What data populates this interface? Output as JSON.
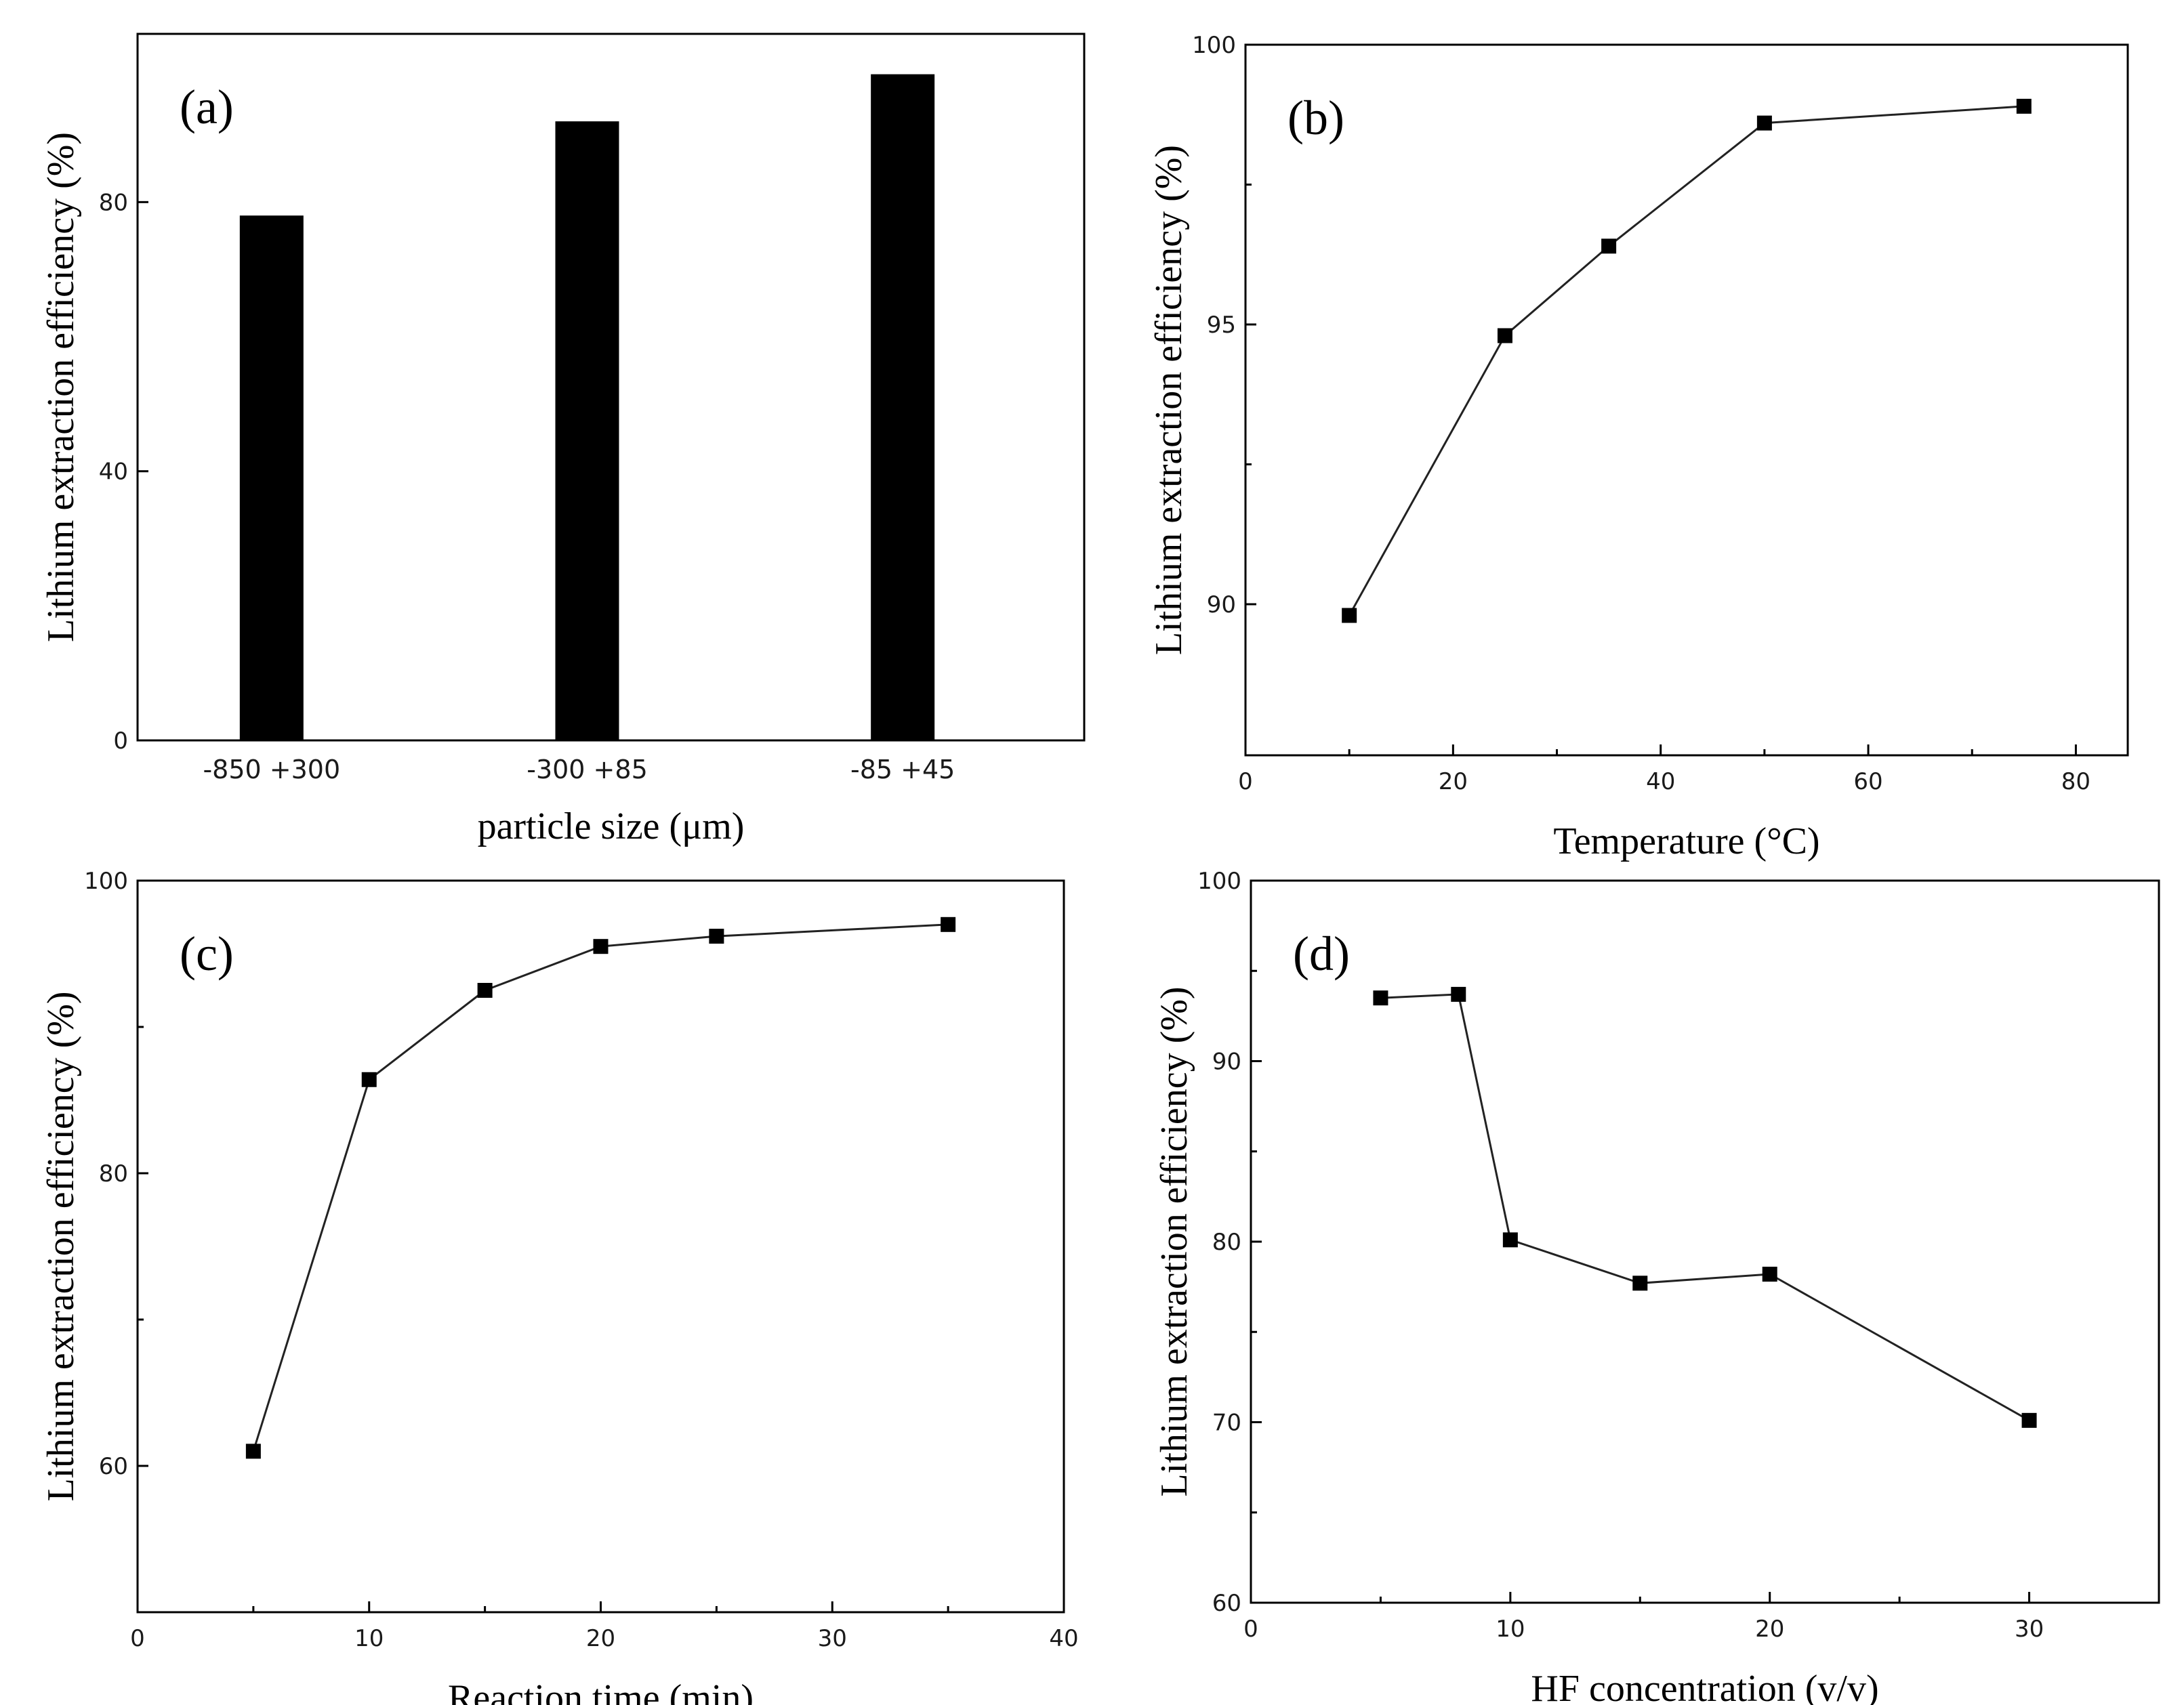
{
  "chart_data": [
    {
      "id": "a",
      "type": "bar",
      "panel_label": "(a)",
      "xlabel": "particle size (μm)",
      "ylabel": "Lithium extraction efficiency (%)",
      "categories": [
        "-850 +300",
        "-300 +85",
        "-85 +45"
      ],
      "values": [
        78,
        92,
        99
      ],
      "ylim": [
        0,
        105
      ],
      "yticks": [
        0,
        40,
        80
      ],
      "grid": false,
      "color": "#000000"
    },
    {
      "id": "b",
      "type": "line",
      "panel_label": "(b)",
      "xlabel": "Temperature (°C)",
      "ylabel": "Lithium extraction efficiency (%)",
      "x": [
        10,
        25,
        35,
        50,
        75
      ],
      "y": [
        89.8,
        94.8,
        96.4,
        98.6,
        98.9
      ],
      "xlim": [
        0,
        85
      ],
      "ylim": [
        87.3,
        100
      ],
      "xticks": [
        0,
        20,
        40,
        60,
        80
      ],
      "yticks": [
        90,
        95,
        100
      ],
      "grid": false,
      "color": "#000000"
    },
    {
      "id": "c",
      "type": "line",
      "panel_label": "(c)",
      "xlabel": "Reaction time (min)",
      "ylabel": "Lithium extraction efficiency (%)",
      "x": [
        5,
        10,
        15,
        20,
        25,
        35
      ],
      "y": [
        61,
        86.4,
        92.5,
        95.5,
        96.2,
        97
      ],
      "xlim": [
        0,
        40
      ],
      "ylim": [
        50,
        100
      ],
      "xticks": [
        0,
        10,
        20,
        30,
        40
      ],
      "yticks": [
        60,
        80,
        100
      ],
      "grid": false,
      "color": "#000000"
    },
    {
      "id": "d",
      "type": "line",
      "panel_label": "(d)",
      "xlabel": "HF concentration (v/v)",
      "ylabel": "Lithium extraction efficiency (%)",
      "x": [
        5,
        8,
        10,
        15,
        20,
        30
      ],
      "y": [
        93.5,
        93.7,
        80.1,
        77.7,
        78.2,
        70.1
      ],
      "xlim": [
        0,
        35
      ],
      "ylim": [
        60,
        100
      ],
      "xticks": [
        0,
        10,
        20,
        30
      ],
      "yticks": [
        60,
        70,
        80,
        90,
        100
      ],
      "grid": false,
      "color": "#000000"
    }
  ]
}
